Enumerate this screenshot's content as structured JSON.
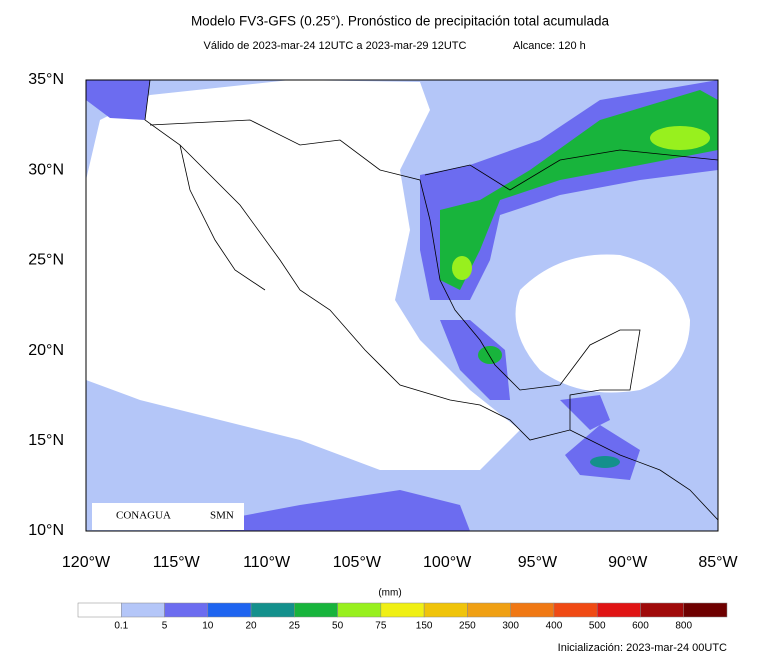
{
  "title": "Modelo FV3-GFS (0.25°). Pronóstico de precipitación total acumulada",
  "subtitle": "Válido de 2023-mar-24 12UTC a 2023-mar-29 12UTC",
  "range_text": "Alcance: 120 h",
  "map": {
    "lat_labels": [
      "35°N",
      "30°N",
      "25°N",
      "20°N",
      "15°N",
      "10°N"
    ],
    "lon_labels": [
      "120°W",
      "115°W",
      "110°W",
      "105°W",
      "100°W",
      "95°W",
      "90°W",
      "85°W"
    ],
    "logos": [
      "CONAGUA",
      "SMN"
    ]
  },
  "colorbar": {
    "unit": "(mm)",
    "labels": [
      "0.1",
      "5",
      "10",
      "20",
      "25",
      "50",
      "75",
      "150",
      "250",
      "300",
      "400",
      "500",
      "600",
      "800"
    ],
    "colors": [
      "#ffffff",
      "#b4c6f8",
      "#6c6cf0",
      "#1e64f0",
      "#14908c",
      "#18b43c",
      "#98f01e",
      "#f0f014",
      "#f0c40a",
      "#f0a014",
      "#f07814",
      "#f04a14",
      "#e01414",
      "#a00a0a",
      "#6e0000"
    ]
  },
  "footer": "Inicialización: 2023-mar-24 00UTC"
}
